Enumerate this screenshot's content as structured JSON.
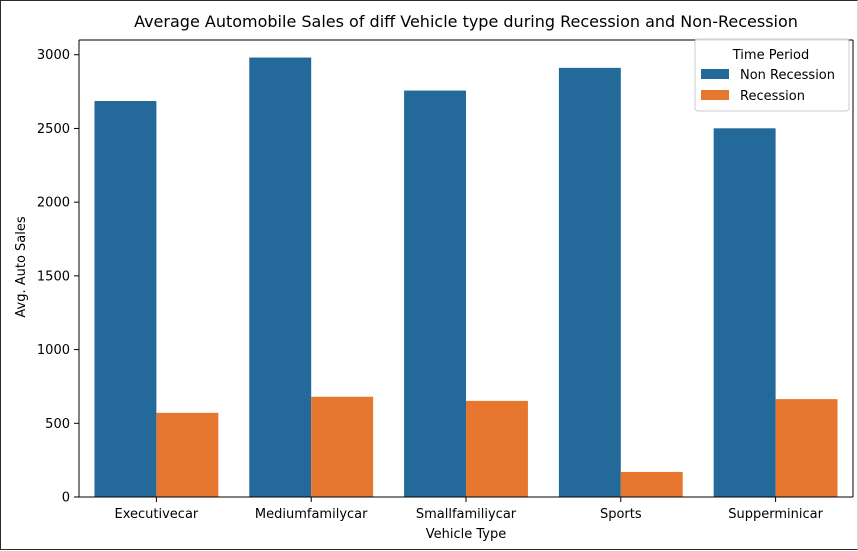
{
  "chart_data": {
    "type": "bar",
    "title": "Average Automobile Sales of diff Vehicle type during Recession and Non-Recession",
    "xlabel": "Vehicle Type",
    "ylabel": "Avg. Auto Sales",
    "categories": [
      "Executivecar",
      "Mediumfamilycar",
      "Smallfamiliycar",
      "Sports",
      "Supperminicar"
    ],
    "series": [
      {
        "name": "Non Recession",
        "color": "#23699a",
        "values": [
          2686,
          2981,
          2757,
          2911,
          2501
        ]
      },
      {
        "name": "Recession",
        "color": "#e7762f",
        "values": [
          571,
          680,
          652,
          170,
          664
        ]
      }
    ],
    "ylim": [
      0,
      3000
    ],
    "yticks": [
      0,
      500,
      1000,
      1500,
      2000,
      2500,
      3000
    ],
    "legend": {
      "title": "Time Period",
      "position": "top-right"
    },
    "grid": false
  }
}
